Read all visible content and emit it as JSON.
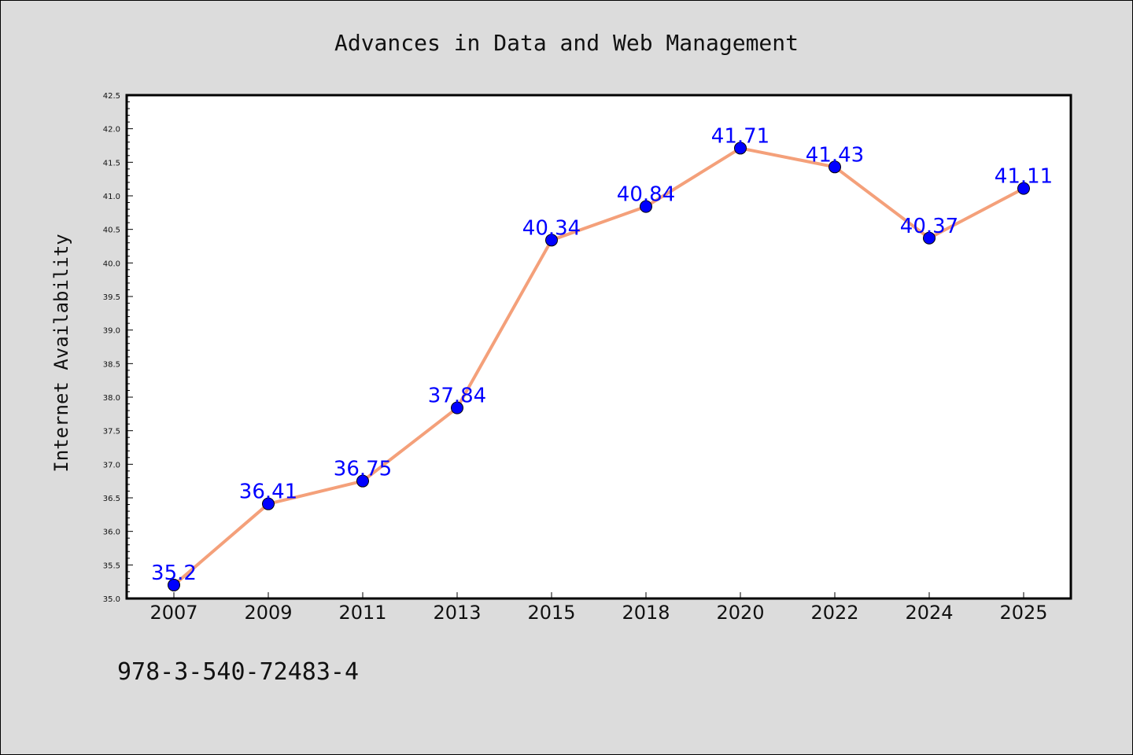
{
  "footer_text": "978-3-540-72483-4",
  "chart_data": {
    "type": "line",
    "title": "Advances in Data and Web Management",
    "xlabel": "",
    "ylabel": "Internet Availability",
    "categories": [
      "2007",
      "2009",
      "2011",
      "2013",
      "2015",
      "2018",
      "2020",
      "2022",
      "2024",
      "2025"
    ],
    "series": [
      {
        "values": [
          35.2,
          36.41,
          36.75,
          37.84,
          40.34,
          40.84,
          41.71,
          41.43,
          40.37,
          41.11
        ]
      }
    ],
    "data_labels": [
      "35.2",
      "36.41",
      "36.75",
      "37.84",
      "40.34",
      "40.84",
      "41.71",
      "41.43",
      "40.37",
      "41.11"
    ],
    "ylim": [
      35.0,
      42.5
    ],
    "yticks": [
      "35.0",
      "35.5",
      "36.0",
      "36.5",
      "37.0",
      "37.5",
      "38.0",
      "38.5",
      "39.0",
      "39.5",
      "40.0",
      "40.5",
      "41.0",
      "41.5",
      "42.0",
      "42.5"
    ],
    "grid": false,
    "legend": "none",
    "colors": {
      "line": "#f4a07a",
      "marker": "#0000ff",
      "label": "#0000ff",
      "background": "#dcdcdc",
      "plot_background": "#ffffff"
    }
  }
}
